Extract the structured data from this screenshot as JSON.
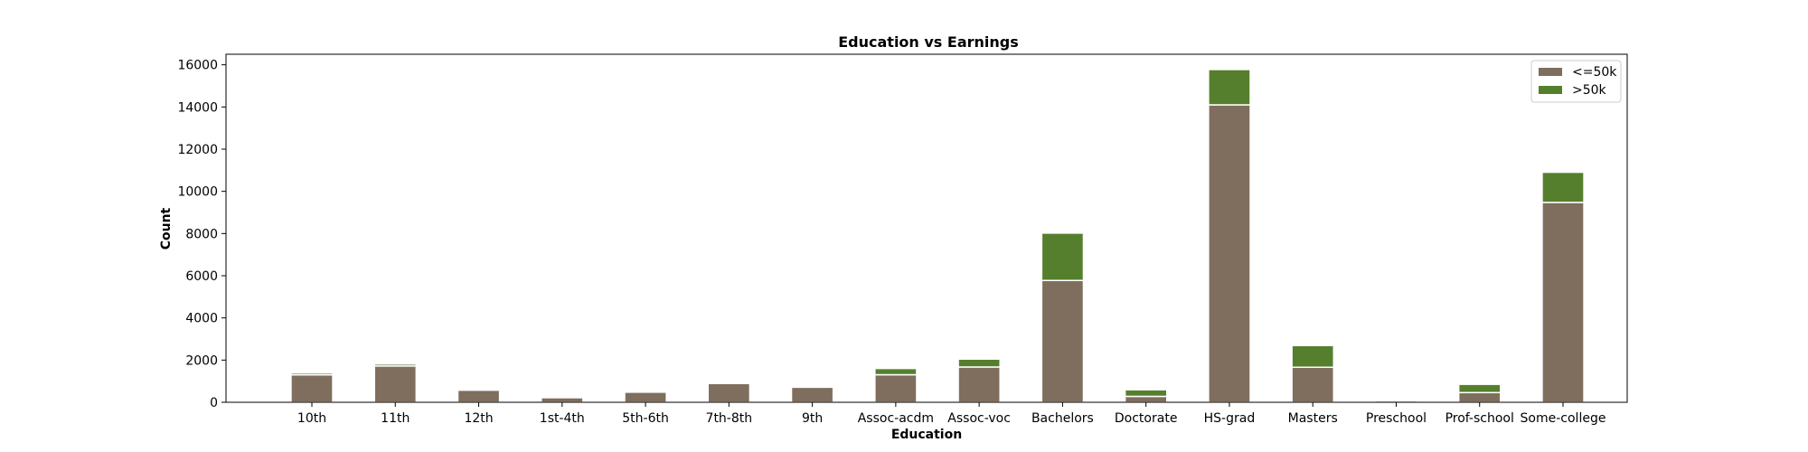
{
  "chart_data": {
    "type": "bar",
    "stacked": true,
    "title": "Education vs Earnings",
    "xlabel": "Education",
    "ylabel": "Count",
    "ylim": [
      0,
      16500
    ],
    "yticks": [
      0,
      2000,
      4000,
      6000,
      8000,
      10000,
      12000,
      14000,
      16000
    ],
    "categories": [
      "10th",
      "11th",
      "12th",
      "1st-4th",
      "5th-6th",
      "7th-8th",
      "9th",
      "Assoc-acdm",
      "Assoc-voc",
      "Bachelors",
      "Doctorate",
      "HS-grad",
      "Masters",
      "Preschool",
      "Prof-school",
      "Some-college"
    ],
    "series": [
      {
        "name": "<=50k",
        "color": "#7f6e5d",
        "values": [
          1302,
          1720,
          577,
          220,
          480,
          893,
          715,
          1306,
          1673,
          5775,
          280,
          14101,
          1660,
          70,
          460,
          9475
        ]
      },
      {
        "name": ">50k",
        "color": "#557f2d",
        "values": [
          87,
          92,
          48,
          6,
          27,
          62,
          38,
          296,
          374,
          2245,
          313,
          1674,
          1030,
          0,
          391,
          1429
        ]
      }
    ],
    "grid": false,
    "legend_position": "top-right"
  }
}
